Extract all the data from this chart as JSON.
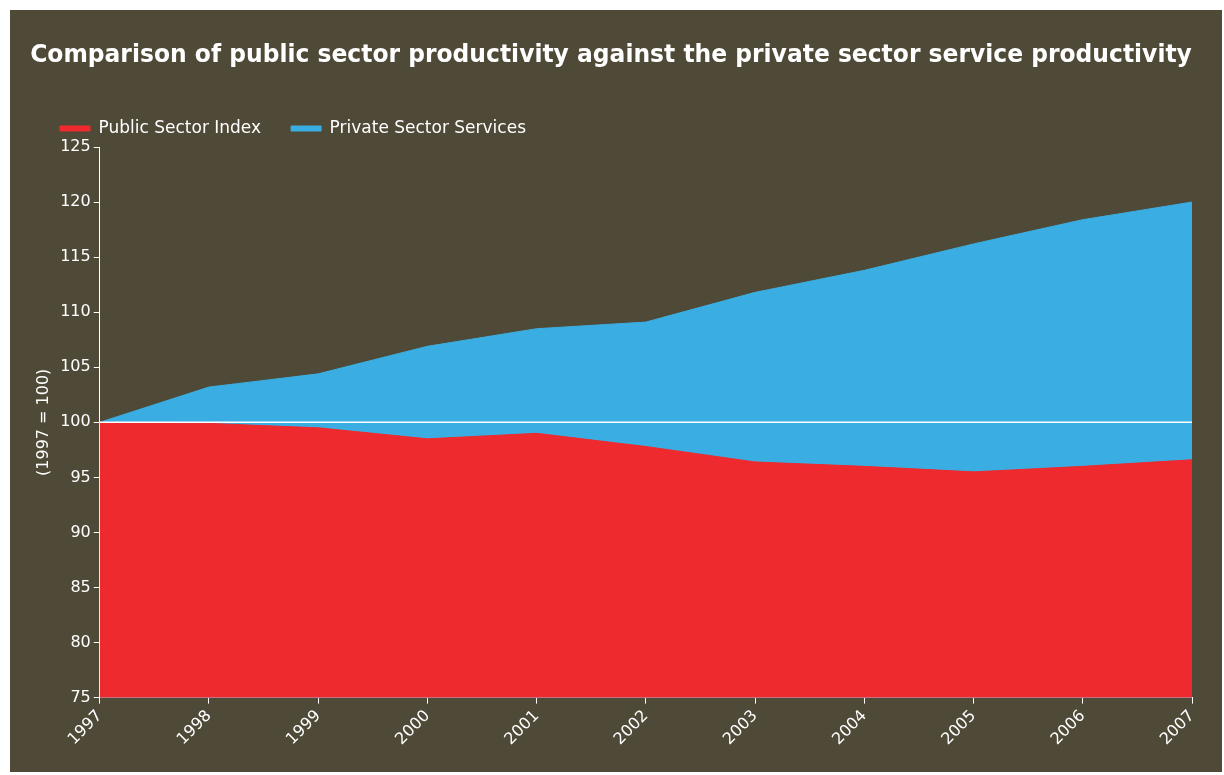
{
  "chart_data": {
    "type": "area",
    "title": "Comparison of public sector productivity against the private sector service productivity",
    "ylabel": "(1997 = 100)",
    "categories": [
      "1997",
      "1998",
      "1999",
      "2000",
      "2001",
      "2002",
      "2003",
      "2004",
      "2005",
      "2006",
      "2007"
    ],
    "series": [
      {
        "name": "Private Sector Services",
        "color": "#3aaee2",
        "values": [
          100,
          103.2,
          104.4,
          106.9,
          108.5,
          109.1,
          111.8,
          113.8,
          116.2,
          118.4,
          120.0
        ]
      },
      {
        "name": "Public Sector Index",
        "color": "#ee2a2e",
        "values": [
          100,
          99.9,
          99.5,
          98.5,
          99.0,
          97.8,
          96.4,
          96.0,
          95.5,
          96.0,
          96.6
        ]
      }
    ],
    "ylim": [
      75,
      125
    ],
    "yticks": [
      75,
      80,
      85,
      90,
      95,
      100,
      105,
      110,
      115,
      120,
      125
    ],
    "ref_lines": [
      {
        "axis": "y",
        "value": 100,
        "color": "#ffffff"
      }
    ],
    "legend": "top left",
    "grid": false
  }
}
